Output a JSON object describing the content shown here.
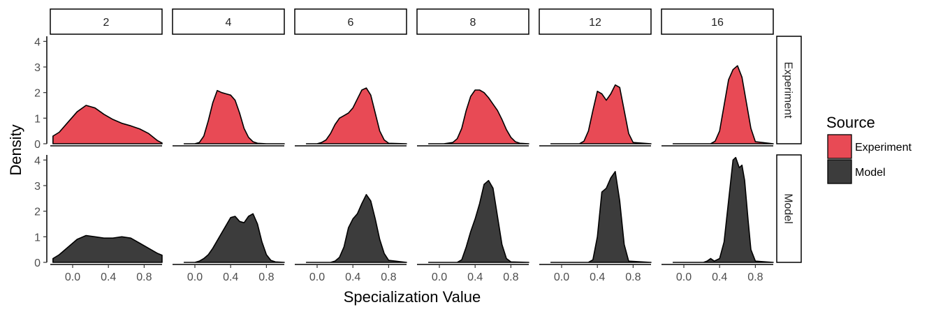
{
  "chart_data": {
    "type": "area",
    "subtype": "faceted density",
    "xlabel": "Specialization Value",
    "ylabel": "Density",
    "xlim": [
      -0.25,
      1.0
    ],
    "ylim": [
      0,
      4.2
    ],
    "x_ticks": [
      "0.0",
      "0.4",
      "0.8"
    ],
    "y_ticks": [
      "0",
      "1",
      "2",
      "3",
      "4"
    ],
    "facet_cols": [
      "2",
      "4",
      "6",
      "8",
      "12",
      "16"
    ],
    "facet_rows": [
      "Experiment",
      "Model"
    ],
    "legend": {
      "title": "Source",
      "position": "right",
      "entries": [
        {
          "label": "Experiment",
          "color": "#E84A55"
        },
        {
          "label": "Model",
          "color": "#3C3C3C"
        }
      ]
    },
    "grid": false,
    "panels": [
      {
        "row": "Experiment",
        "col": "2",
        "x": [
          -0.22,
          -0.15,
          -0.05,
          0.05,
          0.15,
          0.25,
          0.35,
          0.45,
          0.55,
          0.65,
          0.75,
          0.85,
          0.95,
          1.0
        ],
        "y": [
          0.3,
          0.45,
          0.85,
          1.25,
          1.5,
          1.4,
          1.15,
          0.95,
          0.8,
          0.7,
          0.58,
          0.4,
          0.12,
          0.03
        ]
      },
      {
        "row": "Experiment",
        "col": "4",
        "x": [
          -0.12,
          0.0,
          0.05,
          0.1,
          0.15,
          0.2,
          0.25,
          0.3,
          0.35,
          0.4,
          0.45,
          0.5,
          0.55,
          0.6,
          0.65,
          0.7,
          0.8,
          1.0
        ],
        "y": [
          0,
          0,
          0.05,
          0.3,
          0.9,
          1.6,
          2.08,
          2.0,
          1.95,
          1.9,
          1.7,
          1.2,
          0.6,
          0.25,
          0.08,
          0.02,
          0,
          0
        ]
      },
      {
        "row": "Experiment",
        "col": "6",
        "x": [
          -0.12,
          0.0,
          0.05,
          0.1,
          0.15,
          0.2,
          0.25,
          0.3,
          0.35,
          0.4,
          0.45,
          0.5,
          0.55,
          0.6,
          0.65,
          0.7,
          0.75,
          0.8,
          1.0
        ],
        "y": [
          0,
          0,
          0.05,
          0.15,
          0.4,
          0.75,
          1.0,
          1.1,
          1.2,
          1.4,
          1.75,
          2.1,
          2.18,
          1.9,
          1.2,
          0.5,
          0.15,
          0.02,
          0
        ]
      },
      {
        "row": "Experiment",
        "col": "8",
        "x": [
          -0.12,
          0.05,
          0.15,
          0.2,
          0.25,
          0.3,
          0.35,
          0.4,
          0.45,
          0.5,
          0.55,
          0.6,
          0.65,
          0.7,
          0.75,
          0.8,
          0.85,
          0.9,
          1.0
        ],
        "y": [
          0,
          0,
          0.05,
          0.2,
          0.6,
          1.3,
          1.85,
          2.1,
          2.1,
          2.0,
          1.8,
          1.55,
          1.3,
          0.95,
          0.55,
          0.25,
          0.08,
          0.02,
          0
        ]
      },
      {
        "row": "Experiment",
        "col": "12",
        "x": [
          -0.12,
          0.2,
          0.25,
          0.3,
          0.35,
          0.4,
          0.45,
          0.5,
          0.55,
          0.6,
          0.65,
          0.7,
          0.75,
          0.8,
          1.0
        ],
        "y": [
          0,
          0,
          0.1,
          0.5,
          1.3,
          2.05,
          1.95,
          1.7,
          1.95,
          2.3,
          2.2,
          1.3,
          0.4,
          0.05,
          0
        ]
      },
      {
        "row": "Experiment",
        "col": "16",
        "x": [
          -0.12,
          0.3,
          0.35,
          0.4,
          0.45,
          0.5,
          0.55,
          0.6,
          0.65,
          0.7,
          0.75,
          0.8,
          1.0
        ],
        "y": [
          0,
          0,
          0.1,
          0.5,
          1.5,
          2.5,
          2.9,
          3.05,
          2.6,
          1.6,
          0.6,
          0.08,
          0
        ]
      },
      {
        "row": "Model",
        "col": "2",
        "x": [
          -0.22,
          -0.15,
          -0.05,
          0.05,
          0.15,
          0.25,
          0.35,
          0.45,
          0.55,
          0.65,
          0.75,
          0.85,
          0.95,
          1.0
        ],
        "y": [
          0.15,
          0.3,
          0.6,
          0.9,
          1.05,
          1.0,
          0.95,
          0.95,
          1.0,
          0.95,
          0.75,
          0.55,
          0.35,
          0.28
        ]
      },
      {
        "row": "Model",
        "col": "4",
        "x": [
          -0.12,
          0.0,
          0.05,
          0.1,
          0.15,
          0.2,
          0.25,
          0.3,
          0.35,
          0.4,
          0.45,
          0.5,
          0.55,
          0.6,
          0.65,
          0.7,
          0.75,
          0.8,
          0.85,
          0.9,
          1.0
        ],
        "y": [
          0,
          0,
          0.05,
          0.15,
          0.3,
          0.55,
          0.85,
          1.15,
          1.45,
          1.75,
          1.8,
          1.6,
          1.55,
          1.8,
          1.9,
          1.5,
          0.8,
          0.3,
          0.08,
          0.02,
          0
        ]
      },
      {
        "row": "Model",
        "col": "6",
        "x": [
          -0.12,
          0.15,
          0.2,
          0.25,
          0.3,
          0.35,
          0.4,
          0.45,
          0.5,
          0.55,
          0.6,
          0.65,
          0.7,
          0.75,
          0.8,
          1.0
        ],
        "y": [
          0,
          0,
          0.05,
          0.2,
          0.6,
          1.35,
          1.7,
          1.9,
          2.3,
          2.65,
          2.4,
          1.7,
          0.9,
          0.35,
          0.08,
          0
        ]
      },
      {
        "row": "Model",
        "col": "8",
        "x": [
          -0.12,
          0.2,
          0.25,
          0.3,
          0.35,
          0.4,
          0.45,
          0.5,
          0.55,
          0.6,
          0.65,
          0.7,
          0.75,
          0.8,
          1.0
        ],
        "y": [
          0,
          0,
          0.1,
          0.6,
          1.2,
          1.7,
          2.3,
          3.05,
          3.2,
          2.9,
          1.8,
          0.7,
          0.15,
          0.02,
          0
        ]
      },
      {
        "row": "Model",
        "col": "12",
        "x": [
          -0.12,
          0.3,
          0.35,
          0.4,
          0.45,
          0.5,
          0.55,
          0.6,
          0.65,
          0.7,
          0.75,
          1.0
        ],
        "y": [
          0,
          0,
          0.1,
          1.0,
          2.75,
          2.9,
          3.3,
          3.55,
          2.4,
          0.7,
          0.05,
          0
        ]
      },
      {
        "row": "Model",
        "col": "16",
        "x": [
          -0.12,
          0.22,
          0.26,
          0.3,
          0.34,
          0.4,
          0.45,
          0.5,
          0.55,
          0.58,
          0.62,
          0.65,
          0.68,
          0.72,
          0.75,
          0.8,
          1.0
        ],
        "y": [
          0,
          0,
          0.05,
          0.15,
          0.05,
          0.15,
          0.8,
          2.4,
          4.0,
          4.1,
          3.7,
          3.8,
          3.2,
          1.6,
          0.5,
          0.05,
          0
        ]
      }
    ]
  }
}
